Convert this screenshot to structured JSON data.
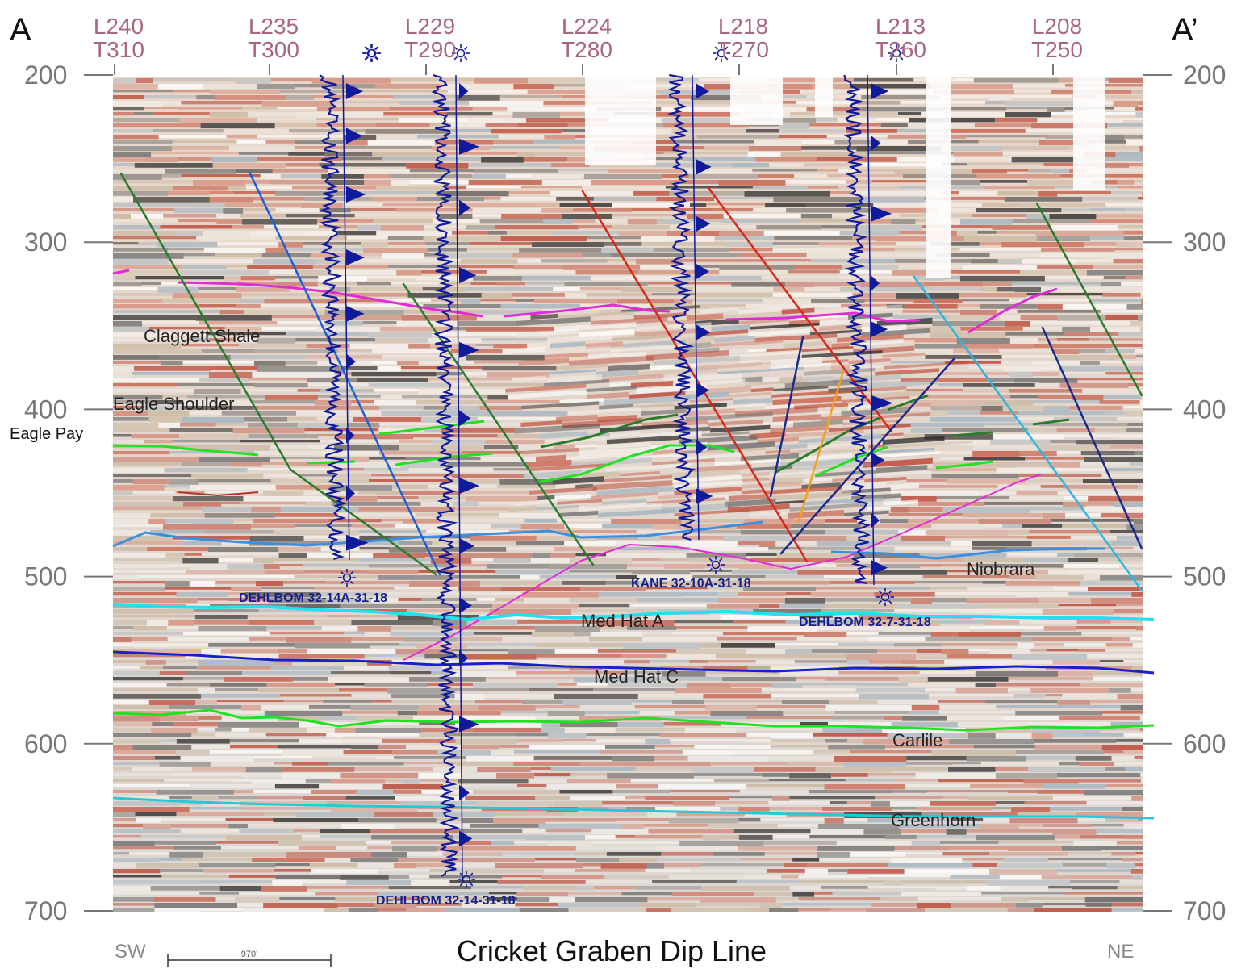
{
  "corner_labels": {
    "left": "A",
    "right": "A’"
  },
  "direction": {
    "left": "SW",
    "right": "NE"
  },
  "title": "Cricket Graben Dip Line",
  "scale_bar": {
    "label": "970'"
  },
  "colors": {
    "line_tick": "#a8677f",
    "axis": "#777777",
    "well": "#101a9c",
    "well_label": "#15208c",
    "fault_green": "#2c7a2c",
    "fault_red": "#d8271a",
    "fault_blue": "#1b5fd6",
    "fault_navy": "#1a2a8a",
    "fault_orange": "#f0a020",
    "fault_cyan": "#31b6dc",
    "horizon_magenta": "#e22ad6",
    "horizon_lightblue": "#3a8fe0",
    "horizon_cyan": "#23e0f0",
    "horizon_blue": "#1820c8",
    "horizon_green": "#22e022",
    "horizon_teal": "#28c7d8"
  },
  "time_axis": {
    "min": 200,
    "max": 700,
    "ticks": [
      "200",
      "300",
      "400",
      "500",
      "600",
      "700"
    ]
  },
  "line_labels": [
    {
      "line": "L240",
      "trace": "T310"
    },
    {
      "line": "L235",
      "trace": "T300"
    },
    {
      "line": "L229",
      "trace": "T290"
    },
    {
      "line": "L224",
      "trace": "T280"
    },
    {
      "line": "L218",
      "trace": "T270"
    },
    {
      "line": "L213",
      "trace": "T260"
    },
    {
      "line": "L208",
      "trace": "T250"
    }
  ],
  "formation_labels": [
    {
      "text": "Claggett Shale",
      "color": "#222222"
    },
    {
      "text": "Eagle Shoulder",
      "color": "#222222"
    },
    {
      "text": "Eagle Pay",
      "color": "#111111"
    },
    {
      "text": "Niobrara",
      "color": "#222222"
    },
    {
      "text": "Med Hat A",
      "color": "#222222"
    },
    {
      "text": "Med Hat C",
      "color": "#222222"
    },
    {
      "text": "Carlile",
      "color": "#222222"
    },
    {
      "text": "Greenhorn",
      "color": "#222222"
    }
  ],
  "wells": [
    {
      "name": "DEHLBOM 32-14A-31-18",
      "top": 200,
      "bottom": 490
    },
    {
      "name": "DEHLBOM 32-14-31-18",
      "top": 200,
      "bottom": 680
    },
    {
      "name": "KANE 32-10A-31-18",
      "top": 200,
      "bottom": 478
    },
    {
      "name": "DEHLBOM 32-7-31-18",
      "top": 200,
      "bottom": 505
    }
  ]
}
